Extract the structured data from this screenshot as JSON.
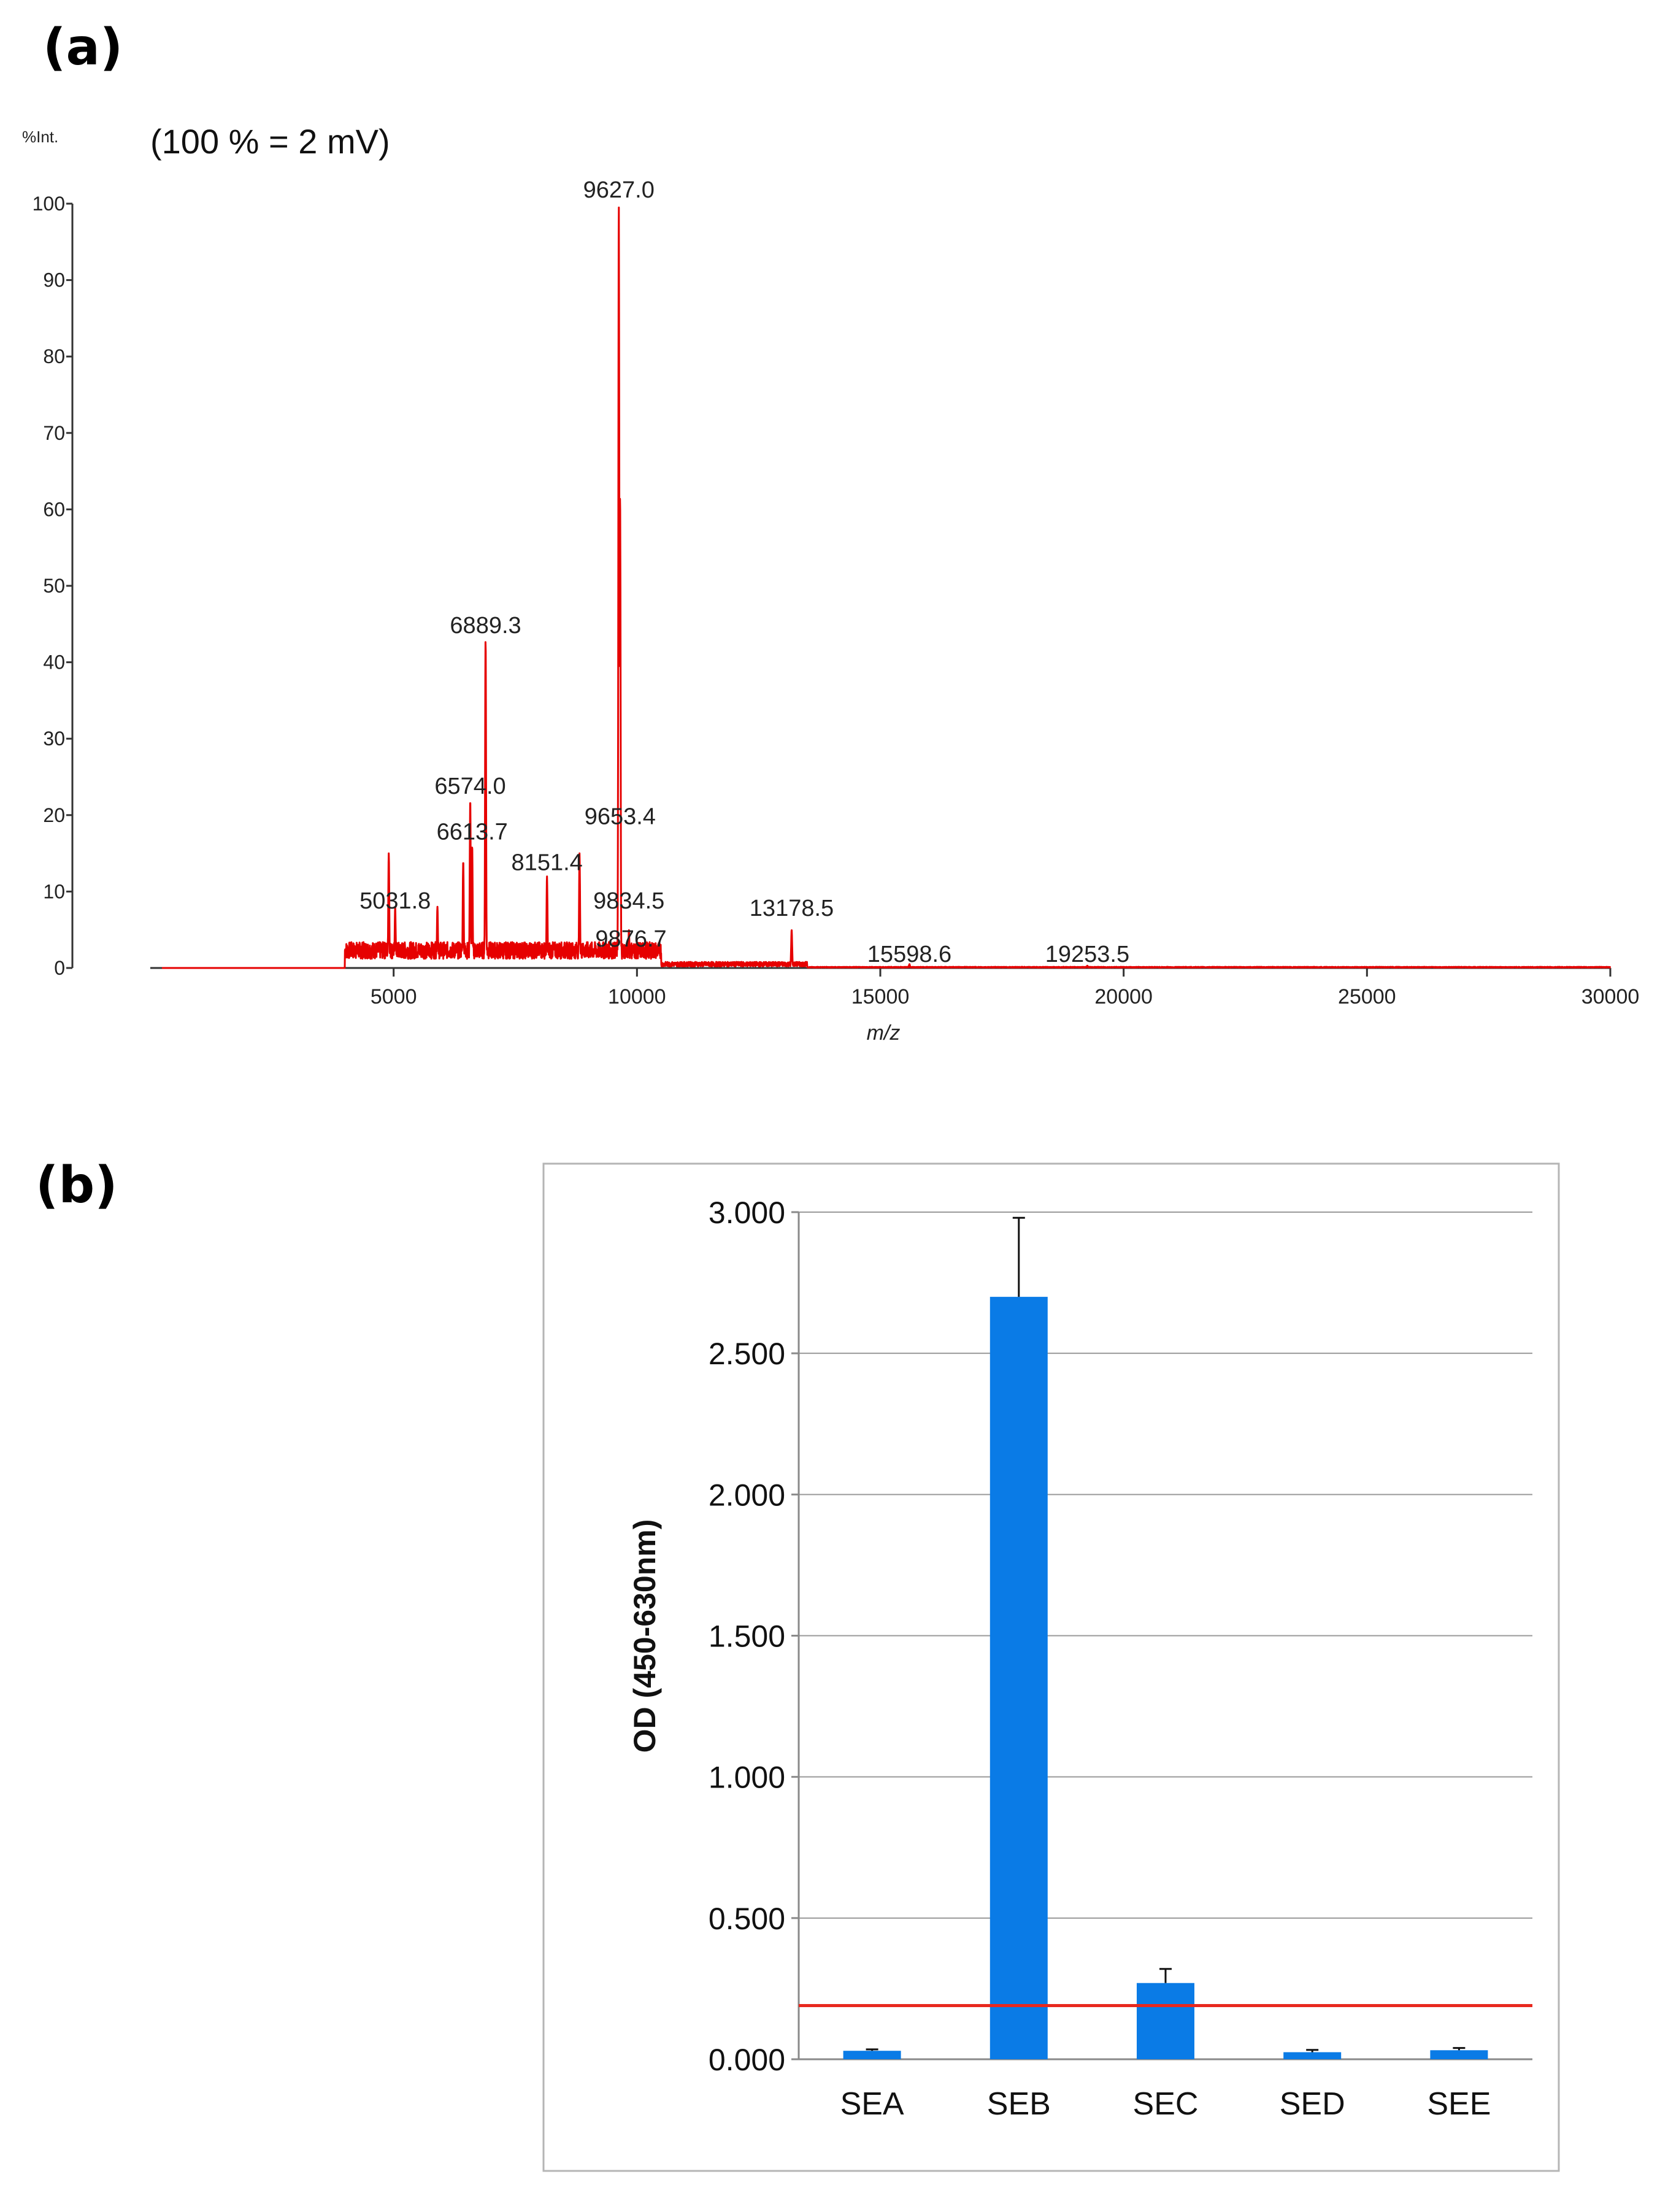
{
  "panels": {
    "a_label": "(a)",
    "b_label": "(b)"
  },
  "chart_data": [
    {
      "id": "mass-spectrum",
      "type": "line",
      "ylabel": "%Int.",
      "note": "(100 % = 2 mV)",
      "xlabel": "m/z",
      "xlim": [
        0,
        30000
      ],
      "ylim": [
        0,
        100
      ],
      "xticks": [
        5000,
        10000,
        15000,
        20000,
        25000,
        30000
      ],
      "yticks": [
        0,
        10,
        20,
        30,
        40,
        50,
        60,
        70,
        80,
        90,
        100
      ],
      "line_color": "#e60000",
      "peaks": [
        {
          "x": 4900,
          "y": 15
        },
        {
          "x": 5031.8,
          "y": 8
        },
        {
          "x": 5900,
          "y": 8
        },
        {
          "x": 6430,
          "y": 14
        },
        {
          "x": 6574.0,
          "y": 22
        },
        {
          "x": 6613.7,
          "y": 16
        },
        {
          "x": 6889.3,
          "y": 43
        },
        {
          "x": 8151.4,
          "y": 12
        },
        {
          "x": 8820,
          "y": 15
        },
        {
          "x": 9627.0,
          "y": 100
        },
        {
          "x": 9653.4,
          "y": 62
        },
        {
          "x": 9834.5,
          "y": 5
        },
        {
          "x": 9876.7,
          "y": 3
        },
        {
          "x": 13178.5,
          "y": 5
        },
        {
          "x": 15598.6,
          "y": 0.5
        },
        {
          "x": 19253.5,
          "y": 0.3
        }
      ],
      "annotations": [
        {
          "text": "9627.0",
          "x": 9627.0,
          "y": 100
        },
        {
          "text": "6889.3",
          "x": 6889.3,
          "y": 43
        },
        {
          "text": "6574.0",
          "x": 6574.0,
          "y": 22
        },
        {
          "text": "9653.4",
          "x": 9653.4,
          "y": 18
        },
        {
          "text": "6613.7",
          "x": 6613.7,
          "y": 16
        },
        {
          "text": "8151.4",
          "x": 8151.4,
          "y": 12
        },
        {
          "text": "5031.8",
          "x": 5031.8,
          "y": 7
        },
        {
          "text": "9834.5",
          "x": 9834.5,
          "y": 7
        },
        {
          "text": "9876.7",
          "x": 9876.7,
          "y": 2
        },
        {
          "text": "13178.5",
          "x": 13178.5,
          "y": 6
        },
        {
          "text": "15598.6",
          "x": 15598.6,
          "y": 0
        },
        {
          "text": "19253.5",
          "x": 19253.5,
          "y": 0
        }
      ]
    },
    {
      "id": "elisa-bars",
      "type": "bar",
      "categories": [
        "SEA",
        "SEB",
        "SEC",
        "SED",
        "SEE"
      ],
      "values": [
        0.03,
        2.7,
        0.27,
        0.025,
        0.032
      ],
      "errors": [
        0.005,
        0.28,
        0.05,
        0.008,
        0.008
      ],
      "ylabel": "OD (450-630nm)",
      "ylim": [
        0,
        3
      ],
      "yticks": [
        "0.000",
        "0.500",
        "1.000",
        "1.500",
        "2.000",
        "2.500",
        "3.000"
      ],
      "cutoff": 0.19,
      "bar_color": "#0a7be6",
      "cutoff_color": "#e8281e",
      "grid": true
    }
  ]
}
